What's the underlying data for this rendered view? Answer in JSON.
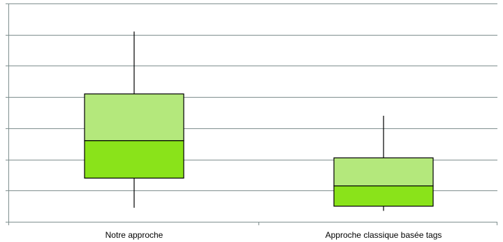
{
  "chart_data": {
    "type": "box",
    "title": "",
    "xlabel": "",
    "ylabel": "",
    "ylim": [
      0,
      7
    ],
    "grid": true,
    "y_tick_count": 8,
    "categories": [
      "Notre approche",
      "Approche classique basée tags"
    ],
    "series": [
      {
        "min": 0.45,
        "q1": 1.4,
        "median": 2.6,
        "q3": 4.1,
        "max": 6.1
      },
      {
        "min": 0.35,
        "q1": 0.5,
        "median": 1.15,
        "q3": 2.05,
        "max": 3.4
      }
    ],
    "colors": {
      "upper_box": "#b4e87c",
      "lower_box": "#8ae31a",
      "outline": "#000000",
      "grid": "#7f8f8f",
      "axis": "#7f8f8f"
    }
  }
}
